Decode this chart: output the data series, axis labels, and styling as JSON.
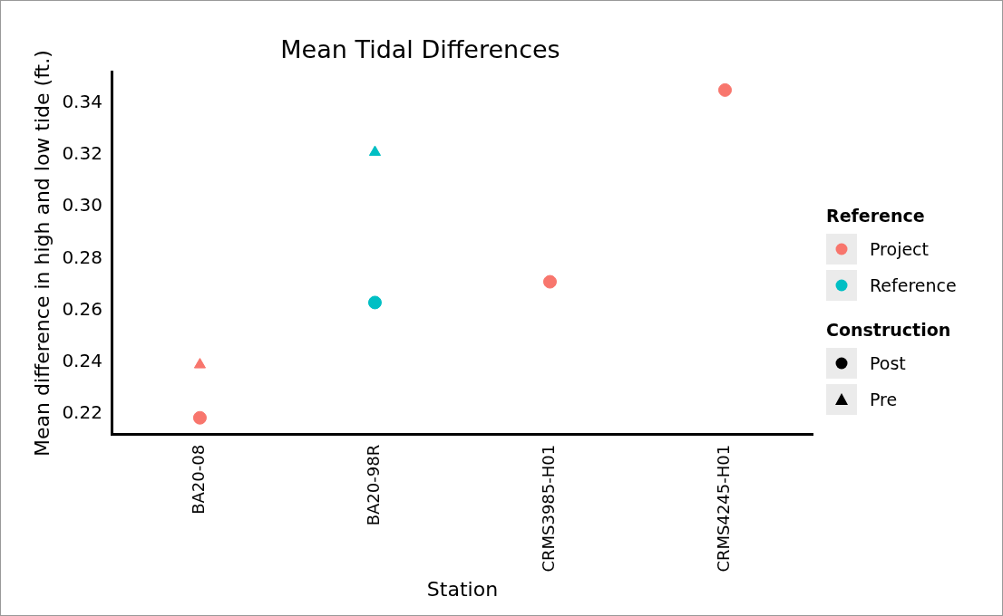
{
  "chart_data": {
    "type": "scatter",
    "title": "Mean Tidal Differences",
    "xlabel": "Station",
    "ylabel": "Mean difference in high and low tide (ft.)",
    "categories": [
      "BA20-08",
      "BA20-98R",
      "CRMS3985-H01",
      "CRMS4245-H01"
    ],
    "ylim": [
      0.212,
      0.352
    ],
    "yticks": [
      0.22,
      0.24,
      0.26,
      0.28,
      {
        "value": 0.3,
        "label": "0.30"
      },
      0.32,
      0.34
    ],
    "grid": false,
    "legend": "right",
    "legend_title": [
      "Reference",
      "Construction"
    ],
    "series": [
      {
        "name": "Project",
        "color": "#f8766d",
        "marker": "circle",
        "values": [
          null,
          null,
          null,
          null
        ]
      },
      {
        "name": "Reference",
        "color": "#00bfc4",
        "marker": "circle",
        "values": [
          null,
          null,
          null,
          null
        ]
      },
      {
        "name": "Post",
        "marker": "circle",
        "colors": [
          "#f8766d",
          "#00bfc4",
          "#f8766d",
          "#f8766d"
        ],
        "values": [
          0.2185,
          0.263,
          0.271,
          0.345
        ]
      },
      {
        "name": "Pre",
        "marker": "triangle",
        "colors": [
          "#f8766d",
          "#00bfc4",
          null,
          null
        ],
        "values": [
          0.239,
          0.321,
          null,
          null
        ]
      }
    ]
  }
}
